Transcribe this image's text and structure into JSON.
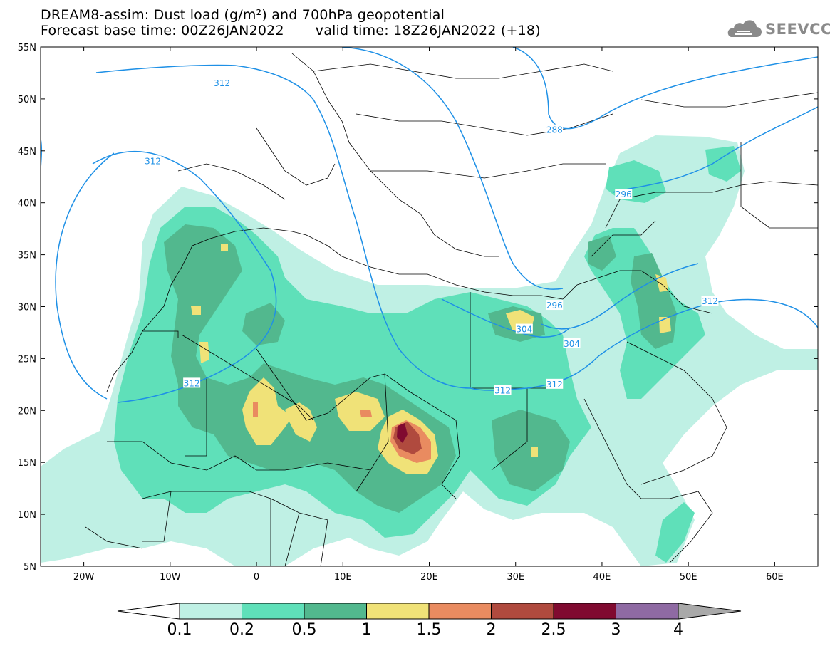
{
  "title": {
    "line1": "DREAM8-assim: Dust load (g/m²) and 700hPa geopotential",
    "line2_left": "Forecast base time: 00Z26JAN2022",
    "line2_right": "valid time: 18Z26JAN2022 (+18)"
  },
  "logo": {
    "text": "SEEVCCC",
    "icon": "cloud-logo-icon"
  },
  "axes": {
    "lon_range": [
      -25,
      65
    ],
    "lat_range": [
      5,
      55
    ],
    "lat_ticks": [
      {
        "value": 55,
        "label": "55N"
      },
      {
        "value": 50,
        "label": "50N"
      },
      {
        "value": 45,
        "label": "45N"
      },
      {
        "value": 40,
        "label": "40N"
      },
      {
        "value": 35,
        "label": "35N"
      },
      {
        "value": 30,
        "label": "30N"
      },
      {
        "value": 25,
        "label": "25N"
      },
      {
        "value": 20,
        "label": "20N"
      },
      {
        "value": 15,
        "label": "15N"
      },
      {
        "value": 10,
        "label": "10N"
      },
      {
        "value": 5,
        "label": "5N"
      }
    ],
    "lon_ticks": [
      {
        "value": -20,
        "label": "20W"
      },
      {
        "value": -10,
        "label": "10W"
      },
      {
        "value": 0,
        "label": "0"
      },
      {
        "value": 10,
        "label": "10E"
      },
      {
        "value": 20,
        "label": "20E"
      },
      {
        "value": 30,
        "label": "30E"
      },
      {
        "value": 40,
        "label": "40E"
      },
      {
        "value": 50,
        "label": "50E"
      },
      {
        "value": 60,
        "label": "60E"
      }
    ]
  },
  "colorbar": {
    "levels": [
      "0.1",
      "0.2",
      "0.5",
      "1",
      "1.5",
      "2",
      "2.5",
      "3",
      "4"
    ],
    "colors": [
      "#ffffff",
      "#bff0e4",
      "#5fe0b9",
      "#52b88e",
      "#f0e278",
      "#e98b60",
      "#b04a3e",
      "#800a30",
      "#8f6aa3",
      "#a9a9a9"
    ]
  },
  "geopotential_labels": [
    {
      "text": "312",
      "lon": -4,
      "lat": 51.5
    },
    {
      "text": "312",
      "lon": -12,
      "lat": 44
    },
    {
      "text": "288",
      "lon": 34.5,
      "lat": 47
    },
    {
      "text": "296",
      "lon": 42.5,
      "lat": 40.8
    },
    {
      "text": "312",
      "lon": 52.5,
      "lat": 30.5
    },
    {
      "text": "296",
      "lon": 34.5,
      "lat": 30.1
    },
    {
      "text": "304",
      "lon": 31,
      "lat": 27.8
    },
    {
      "text": "304",
      "lon": 36.5,
      "lat": 26.4
    },
    {
      "text": "312",
      "lon": -7.5,
      "lat": 22.6
    },
    {
      "text": "312",
      "lon": 28.5,
      "lat": 21.9
    },
    {
      "text": "312",
      "lon": 34.5,
      "lat": 22.5
    }
  ],
  "colors": {
    "contour": "#1e90e6",
    "border": "#000000"
  }
}
